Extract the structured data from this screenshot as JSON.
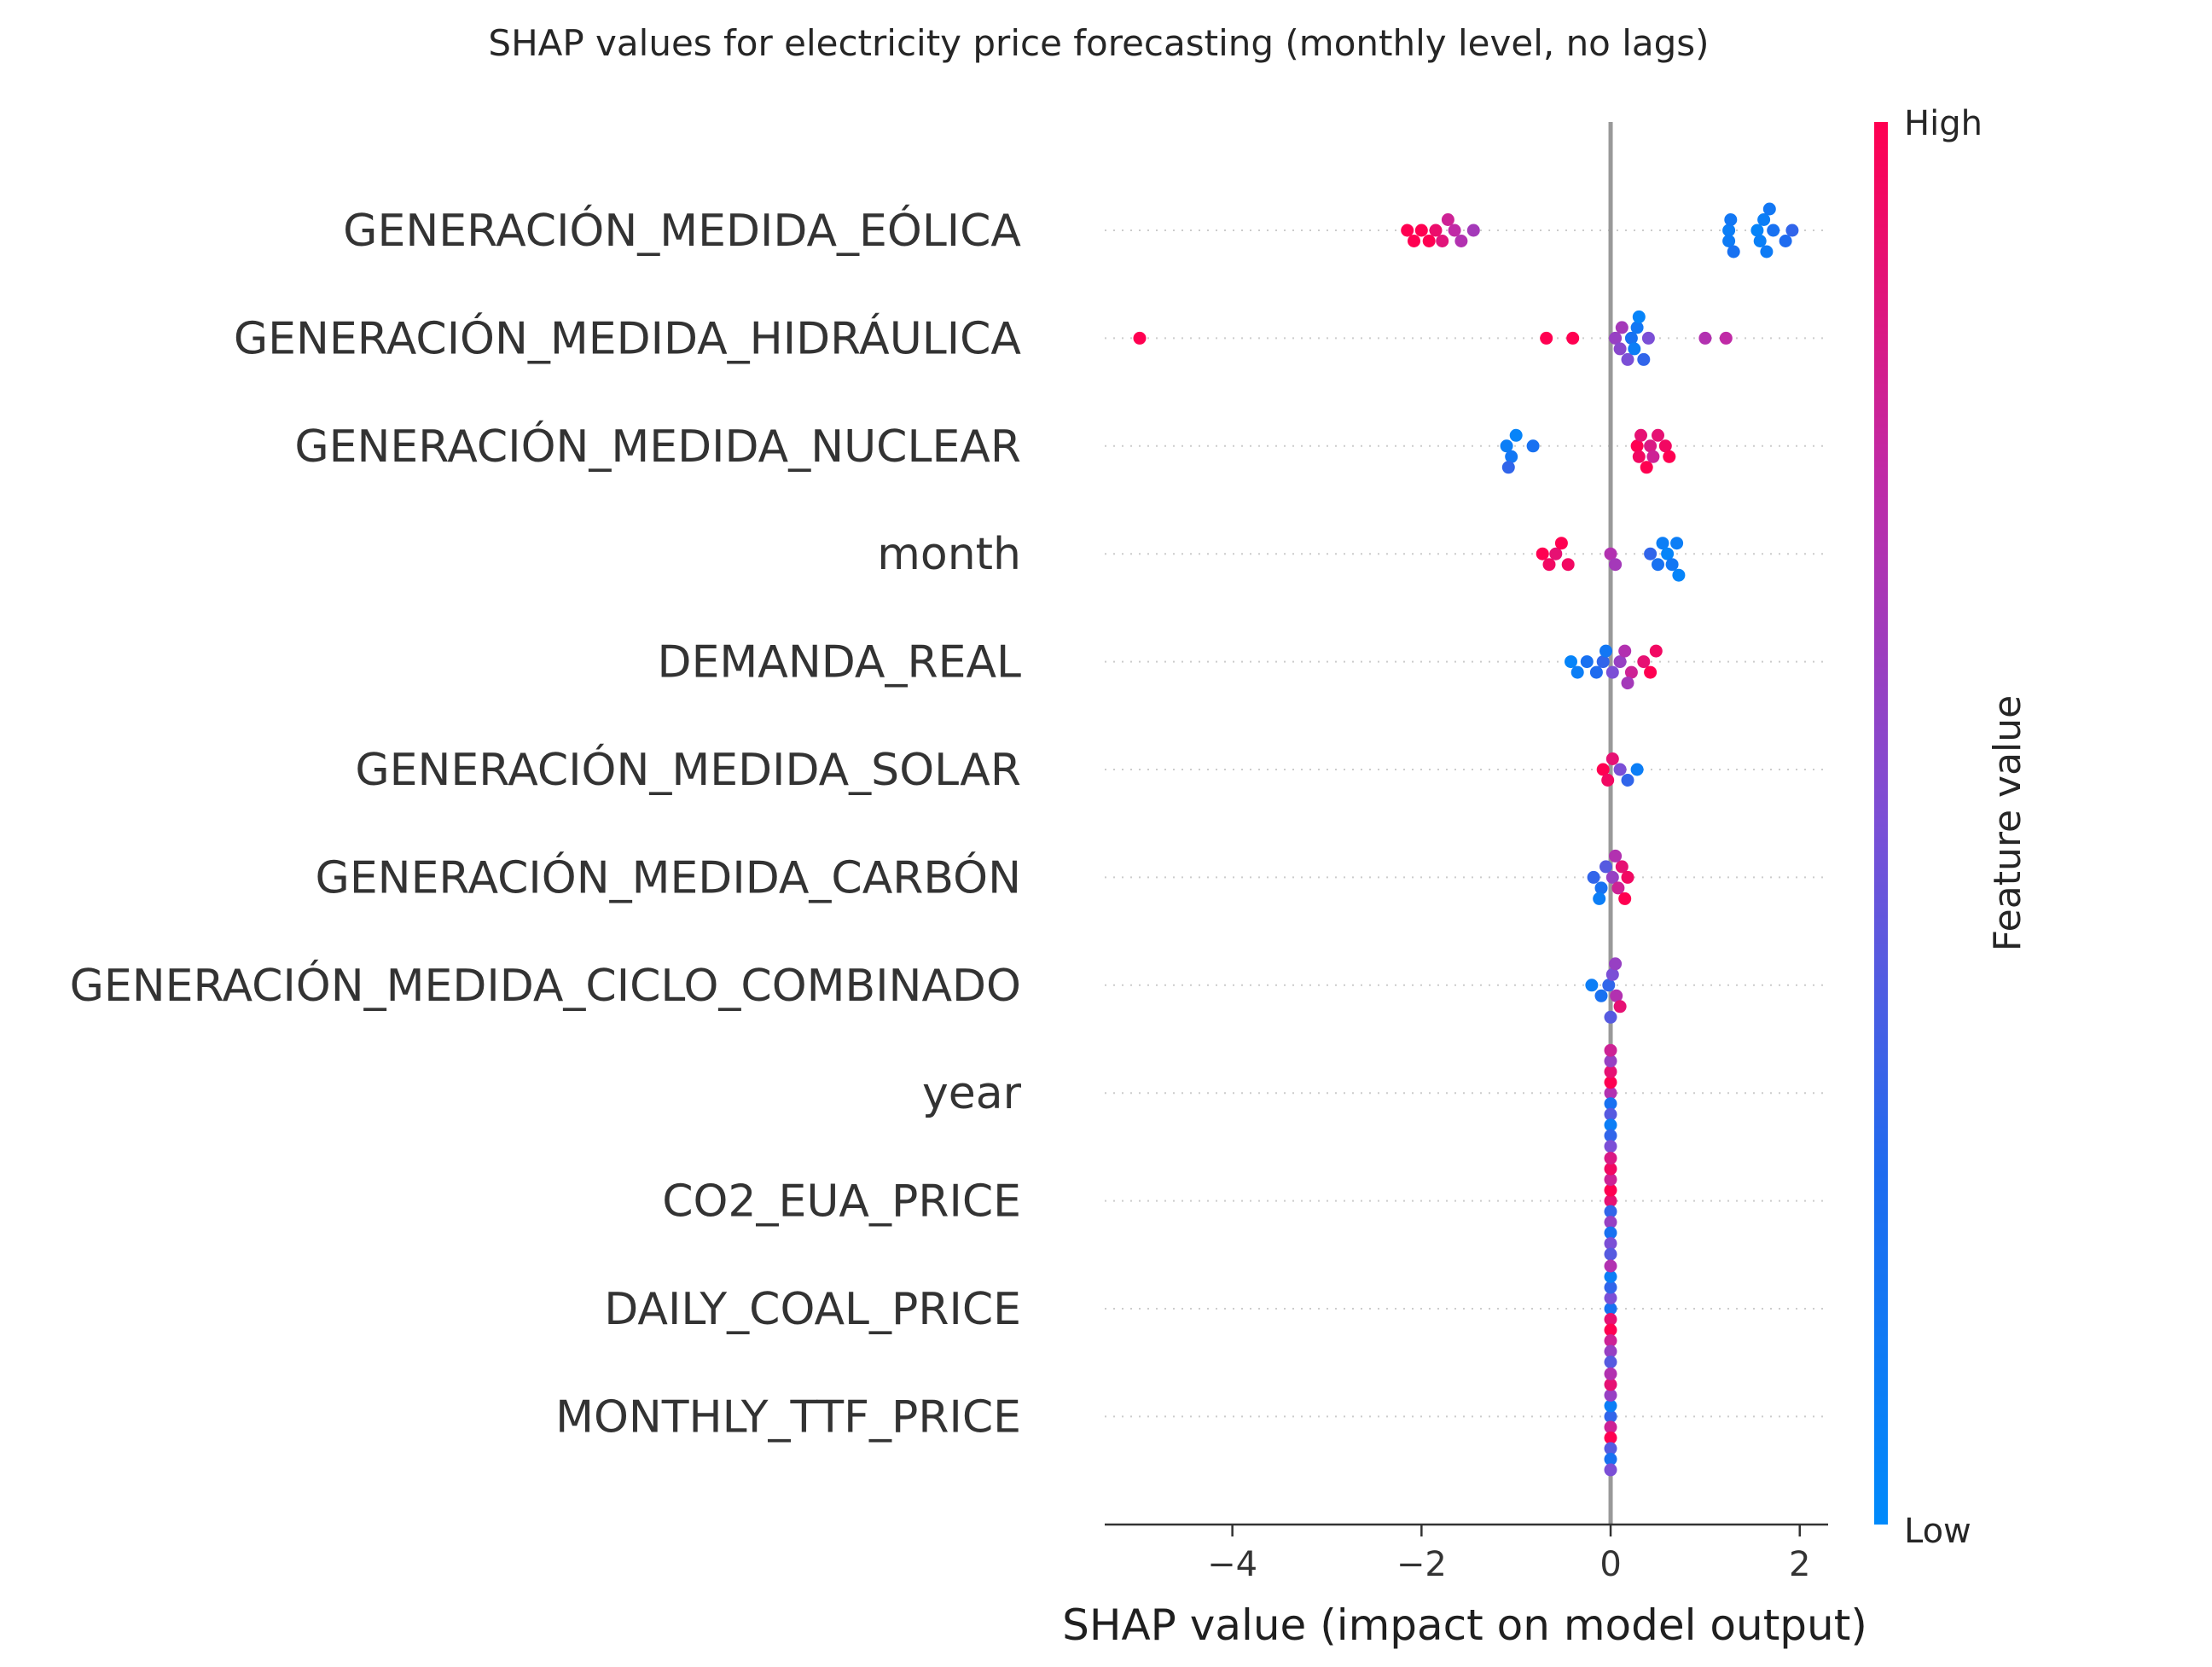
{
  "chart_data": {
    "type": "scatter",
    "title": "SHAP values for electricity price forecasting (monthly level, no lags)",
    "xlabel": "SHAP value (impact on model output)",
    "xlim": [
      -5.35,
      2.3
    ],
    "xticks": [
      -4,
      -2,
      0,
      2
    ],
    "xtick_labels": [
      "−4",
      "−2",
      "0",
      "2"
    ],
    "colorbar": {
      "label": "Feature value",
      "high": "High",
      "low": "Low",
      "low_color": "#008afb",
      "high_color": "#ff0051"
    },
    "features": [
      {
        "name": "GENERACIÓN_MEDIDA_EÓLICA",
        "points": [
          [
            -2.15,
            1
          ],
          [
            -2.08,
            1
          ],
          [
            -2.0,
            1
          ],
          [
            -1.92,
            1
          ],
          [
            -1.85,
            0.92
          ],
          [
            -1.78,
            0.88
          ],
          [
            -1.72,
            0.8
          ],
          [
            -1.65,
            0.75
          ],
          [
            -1.58,
            0.7
          ],
          [
            -1.45,
            0.65
          ],
          [
            1.25,
            0.1
          ],
          [
            1.25,
            0.12
          ],
          [
            1.27,
            0.15
          ],
          [
            1.3,
            0.2
          ],
          [
            1.55,
            0.05
          ],
          [
            1.58,
            0.08
          ],
          [
            1.62,
            0.1
          ],
          [
            1.65,
            0.12
          ],
          [
            1.68,
            0.15
          ],
          [
            1.72,
            0.2
          ],
          [
            1.85,
            0.25
          ],
          [
            1.92,
            0.3
          ]
        ]
      },
      {
        "name": "GENERACIÓN_MEDIDA_HIDRÁULICA",
        "points": [
          [
            -4.98,
            1
          ],
          [
            -0.68,
            1
          ],
          [
            -0.4,
            1
          ],
          [
            0.05,
            0.6
          ],
          [
            0.1,
            0.55
          ],
          [
            0.12,
            0.65
          ],
          [
            0.18,
            0.5
          ],
          [
            0.22,
            0.2
          ],
          [
            0.25,
            0.1
          ],
          [
            0.28,
            0.15
          ],
          [
            0.3,
            0.05
          ],
          [
            0.35,
            0.3
          ],
          [
            0.4,
            0.5
          ],
          [
            1.0,
            0.7
          ],
          [
            1.22,
            0.75
          ]
        ]
      },
      {
        "name": "GENERACIÓN_MEDIDA_NUCLEAR",
        "points": [
          [
            -1.1,
            0.1
          ],
          [
            -1.05,
            0.15
          ],
          [
            -1.0,
            0.05
          ],
          [
            -0.82,
            0.2
          ],
          [
            -1.08,
            0.3
          ],
          [
            0.28,
            1
          ],
          [
            0.3,
            0.95
          ],
          [
            0.32,
            0.9
          ],
          [
            0.38,
            1
          ],
          [
            0.42,
            0.85
          ],
          [
            0.45,
            0.8
          ],
          [
            0.5,
            0.9
          ],
          [
            0.58,
            0.95
          ],
          [
            0.62,
            1
          ]
        ]
      },
      {
        "name": "month",
        "points": [
          [
            -0.72,
            1
          ],
          [
            -0.65,
            0.95
          ],
          [
            -0.58,
            0.9
          ],
          [
            -0.52,
            1
          ],
          [
            -0.45,
            0.95
          ],
          [
            0.0,
            0.7
          ],
          [
            0.05,
            0.65
          ],
          [
            0.42,
            0.3
          ],
          [
            0.5,
            0.2
          ],
          [
            0.55,
            0.1
          ],
          [
            0.6,
            0.05
          ],
          [
            0.65,
            0.15
          ],
          [
            0.7,
            0.1
          ],
          [
            0.72,
            0.05
          ]
        ]
      },
      {
        "name": "DEMANDA_REAL",
        "points": [
          [
            -0.42,
            0.05
          ],
          [
            -0.35,
            0.1
          ],
          [
            -0.25,
            0.2
          ],
          [
            -0.15,
            0.25
          ],
          [
            -0.08,
            0.3
          ],
          [
            0.02,
            0.5
          ],
          [
            0.1,
            0.6
          ],
          [
            0.15,
            0.7
          ],
          [
            0.22,
            0.8
          ],
          [
            0.35,
            0.9
          ],
          [
            0.42,
            1
          ],
          [
            0.48,
            0.95
          ],
          [
            0.18,
            0.65
          ],
          [
            -0.05,
            0.15
          ]
        ]
      },
      {
        "name": "GENERACIÓN_MEDIDA_SOLAR",
        "points": [
          [
            -0.08,
            1
          ],
          [
            -0.03,
            0.95
          ],
          [
            0.02,
            0.9
          ],
          [
            0.1,
            0.5
          ],
          [
            0.18,
            0.3
          ],
          [
            0.28,
            0.1
          ]
        ]
      },
      {
        "name": "GENERACIÓN_MEDIDA_CARBÓN",
        "points": [
          [
            -0.18,
            0.3
          ],
          [
            -0.1,
            0.2
          ],
          [
            -0.05,
            0.4
          ],
          [
            0.02,
            0.6
          ],
          [
            0.08,
            0.8
          ],
          [
            0.12,
            0.9
          ],
          [
            0.15,
            1
          ],
          [
            0.18,
            0.95
          ],
          [
            -0.12,
            0.1
          ],
          [
            0.05,
            0.7
          ]
        ]
      },
      {
        "name": "GENERACIÓN_MEDIDA_CICLO_COMBINADO",
        "points": [
          [
            -0.2,
            0.1
          ],
          [
            -0.1,
            0.2
          ],
          [
            -0.02,
            0.3
          ],
          [
            0.02,
            0.5
          ],
          [
            0.06,
            0.7
          ],
          [
            0.1,
            0.9
          ],
          [
            0.05,
            0.6
          ],
          [
            0.0,
            0.4
          ]
        ]
      },
      {
        "name": "year",
        "points": [
          [
            0.0,
            0.7
          ],
          [
            0.0,
            0.2
          ],
          [
            0.0,
            1
          ],
          [
            0.0,
            0.4
          ],
          [
            0.0,
            0.9
          ],
          [
            0.0,
            0.1
          ],
          [
            0.0,
            0.6
          ],
          [
            0.0,
            0.3
          ],
          [
            0.0,
            0.8
          ],
          [
            0.0,
            0.5
          ]
        ]
      },
      {
        "name": "CO2_EUA_PRICE",
        "points": [
          [
            0.0,
            0.9
          ],
          [
            0.0,
            0.3
          ],
          [
            0.0,
            1
          ],
          [
            0.0,
            0.6
          ],
          [
            0.0,
            0.8
          ],
          [
            0.0,
            0.2
          ],
          [
            0.0,
            0.95
          ],
          [
            0.0,
            0.5
          ],
          [
            0.0,
            0.85
          ],
          [
            0.0,
            0.4
          ]
        ]
      },
      {
        "name": "DAILY_COAL_PRICE",
        "points": [
          [
            0.0,
            0.2
          ],
          [
            0.0,
            0.9
          ],
          [
            0.0,
            0.5
          ],
          [
            0.0,
            1
          ],
          [
            0.0,
            0.3
          ],
          [
            0.0,
            0.8
          ],
          [
            0.0,
            0.1
          ],
          [
            0.0,
            0.6
          ],
          [
            0.0,
            0.7
          ],
          [
            0.0,
            0.4
          ]
        ]
      },
      {
        "name": "MONTHLY_TTF_PRICE",
        "points": [
          [
            0.0,
            0.3
          ],
          [
            0.0,
            0.8
          ],
          [
            0.0,
            0.1
          ],
          [
            0.0,
            1
          ],
          [
            0.0,
            0.6
          ],
          [
            0.0,
            0.4
          ],
          [
            0.0,
            0.9
          ],
          [
            0.0,
            0.2
          ],
          [
            0.0,
            0.7
          ],
          [
            0.0,
            0.5
          ]
        ]
      }
    ]
  }
}
